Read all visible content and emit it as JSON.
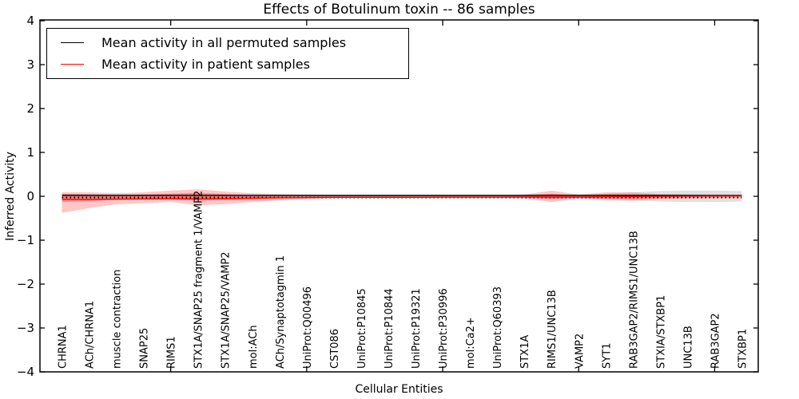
{
  "figure": {
    "title": "Effects of Botulinum toxin -- 86 samples",
    "xlabel": "Cellular Entities",
    "ylabel": "Inferred Activity"
  },
  "legend": {
    "items": [
      {
        "label": "Mean activity in all permuted samples",
        "color": "#000000"
      },
      {
        "label": "Mean activity in patient samples",
        "color": "#ff0000"
      }
    ]
  },
  "chart_data": {
    "type": "line",
    "title": "Effects of Botulinum toxin -- 86 samples",
    "xlabel": "Cellular Entities",
    "ylabel": "Inferred Activity",
    "ylim": [
      -4,
      4
    ],
    "grid": false,
    "legend_position": "upper left",
    "ytick_labels": [
      "4",
      "3",
      "2",
      "1",
      "0",
      "−1",
      "−2",
      "−3",
      "−4"
    ],
    "ytick_values": [
      4,
      3,
      2,
      1,
      0,
      -1,
      -2,
      -3,
      -4
    ],
    "x_major_tick_indices": [
      4,
      9,
      14,
      19,
      24
    ],
    "categories": [
      "CHRNA1",
      "ACh/CHRNA1",
      "muscle contraction",
      "SNAP25",
      "RIMS1",
      "STX1A/SNAP25 fragment 1/VAMP2",
      "STX1A/SNAP25/VAMP2",
      "mol:ACh",
      "ACh/Synaptotagmin 1",
      "UniProt:Q00496",
      "CST086",
      "UniProt:P10845",
      "UniProt:P10844",
      "UniProt:P19321",
      "UniProt:P30996",
      "mol:Ca2+",
      "UniProt:Q60393",
      "STX1A",
      "RIMS1/UNC13B",
      "VAMP2",
      "SYT1",
      "RAB3GAP2/RIMS1/UNC13B",
      "STXIA/STXBP1",
      "UNC13B",
      "RAB3GAP2",
      "STXBP1"
    ],
    "series": [
      {
        "name": "Mean activity in all permuted samples",
        "color": "#000000",
        "style": "solid",
        "values": [
          0,
          0,
          0,
          0,
          0,
          0,
          0,
          0,
          0,
          0,
          0,
          0,
          0,
          0,
          0,
          0,
          0,
          0,
          0,
          0,
          0,
          0,
          0,
          0,
          0,
          0
        ]
      },
      {
        "name": "permuted baseline (dotted)",
        "color": "#000000",
        "style": "dotted",
        "values": [
          0,
          0,
          0,
          0,
          0,
          0,
          0,
          0,
          0,
          0,
          0,
          0,
          0,
          0,
          0,
          0,
          0,
          0,
          0,
          0,
          0,
          0,
          0,
          0,
          0,
          0
        ]
      },
      {
        "name": "Mean activity in patient samples",
        "color": "#ff0000",
        "style": "solid",
        "values": [
          -0.055,
          -0.06,
          -0.05,
          -0.045,
          -0.04,
          -0.045,
          -0.04,
          -0.03,
          -0.02,
          -0.015,
          -0.01,
          -0.01,
          -0.01,
          -0.01,
          -0.005,
          -0.005,
          -0.005,
          0,
          0,
          0,
          0.005,
          0.01,
          0.015,
          0.02,
          0.025,
          0.03
        ]
      }
    ],
    "bands": [
      {
        "name": "permuted samples spread",
        "color": "#000000",
        "opacity": 0.12,
        "upper": [
          0.06,
          0.05,
          0.04,
          0.04,
          0.04,
          0.04,
          0.04,
          0.03,
          0.03,
          0.03,
          0.03,
          0.03,
          0.03,
          0.03,
          0.03,
          0.03,
          0.03,
          0.03,
          0.04,
          0.03,
          0.06,
          0.09,
          0.12,
          0.13,
          0.13,
          0.12
        ],
        "lower": [
          -0.08,
          -0.07,
          -0.05,
          -0.05,
          -0.05,
          -0.05,
          -0.04,
          -0.04,
          -0.03,
          -0.03,
          -0.03,
          -0.03,
          -0.03,
          -0.03,
          -0.03,
          -0.03,
          -0.03,
          -0.03,
          -0.04,
          -0.03,
          -0.06,
          -0.09,
          -0.12,
          -0.13,
          -0.13,
          -0.12
        ]
      },
      {
        "name": "patient samples spread (outer)",
        "color": "#ff0000",
        "opacity": 0.22,
        "upper": [
          0.09,
          0.09,
          0.07,
          0.09,
          0.13,
          0.16,
          0.11,
          0.07,
          0.05,
          0.04,
          0.03,
          0.02,
          0.02,
          0.02,
          0.02,
          0.02,
          0.02,
          0.04,
          0.13,
          0.04,
          0.09,
          0.09,
          0.05,
          0.04,
          0.03,
          0.03
        ],
        "lower": [
          -0.38,
          -0.27,
          -0.18,
          -0.16,
          -0.13,
          -0.2,
          -0.18,
          -0.13,
          -0.09,
          -0.06,
          -0.04,
          -0.03,
          -0.03,
          -0.03,
          -0.03,
          -0.03,
          -0.03,
          -0.05,
          -0.13,
          -0.05,
          -0.09,
          -0.1,
          -0.06,
          -0.04,
          -0.03,
          -0.03
        ],
        "legend": false
      },
      {
        "name": "patient samples spread (inner)",
        "color": "#ff0000",
        "opacity": 0.3,
        "upper": [
          0.05,
          0.04,
          0.03,
          0.04,
          0.06,
          0.08,
          0.05,
          0.03,
          0.02,
          0.02,
          0.015,
          0.01,
          0.01,
          0.01,
          0.01,
          0.01,
          0.01,
          0.02,
          0.06,
          0.02,
          0.04,
          0.04,
          0.03,
          0.02,
          0.02,
          0.02
        ],
        "lower": [
          -0.13,
          -0.11,
          -0.08,
          -0.07,
          -0.07,
          -0.1,
          -0.08,
          -0.06,
          -0.04,
          -0.03,
          -0.02,
          -0.02,
          -0.02,
          -0.02,
          -0.02,
          -0.02,
          -0.02,
          -0.03,
          -0.06,
          -0.03,
          -0.05,
          -0.05,
          -0.03,
          -0.02,
          -0.02,
          -0.02
        ]
      }
    ]
  }
}
